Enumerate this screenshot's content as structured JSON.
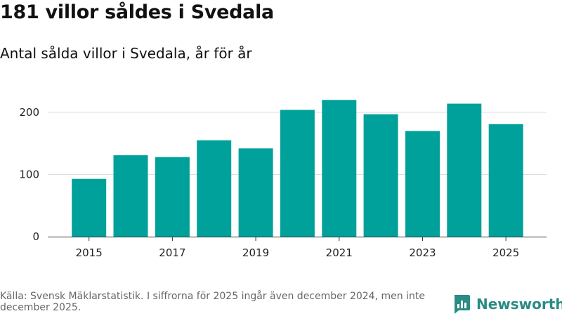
{
  "title": "181 villor såldes i Svedala",
  "subtitle": "Antal sålda villor i Svedala, år för år",
  "source": "Källa: Svensk Mäklarstatistik. I siffrorna för 2025 ingår även december 2024, men inte december 2025.",
  "brand": "Newsworthy",
  "colors": {
    "bar": "#00a19a",
    "grid": "#dddddd",
    "axis": "#333333",
    "brand": "#2a8c84"
  },
  "chart_data": {
    "type": "bar",
    "categories": [
      "2015",
      "2016",
      "2017",
      "2018",
      "2019",
      "2020",
      "2021",
      "2022",
      "2023",
      "2024",
      "2025"
    ],
    "values": [
      93,
      131,
      128,
      155,
      142,
      204,
      220,
      197,
      170,
      214,
      181
    ],
    "x_tick_labels": [
      "2015",
      "2017",
      "2019",
      "2021",
      "2023",
      "2025"
    ],
    "y_ticks": [
      0,
      100,
      200
    ],
    "ylim": [
      0,
      240
    ],
    "xlabel": "",
    "ylabel": "",
    "grid": true
  }
}
